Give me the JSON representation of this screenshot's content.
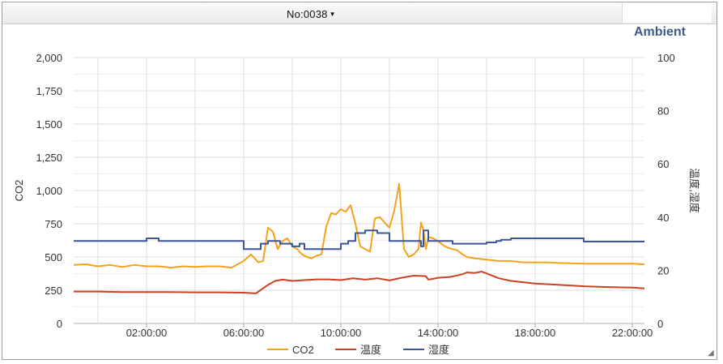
{
  "header": {
    "device_label": "No:0038",
    "chart_title": "Ambient"
  },
  "colors": {
    "co2": "#f5a11a",
    "temperature": "#cc4124",
    "humidity": "#3b5596",
    "title": "#3c5a8f"
  },
  "chart_data": {
    "type": "line",
    "title": "Ambient",
    "ylabel_left": "CO2",
    "ylabel_right": "温度,湿度",
    "ylim_left": [
      0,
      2000
    ],
    "ylim_right": [
      0,
      100
    ],
    "left_ticks": [
      "0",
      "250",
      "500",
      "750",
      "1,000",
      "1,250",
      "1,500",
      "1,750",
      "2,000"
    ],
    "right_ticks": [
      "0",
      "20",
      "40",
      "60",
      "80",
      "100"
    ],
    "x_tick_labels": [
      "02:00:00",
      "06:00:00",
      "10:00:00",
      "14:00:00",
      "18:00:00",
      "22:00:00"
    ],
    "grid": true,
    "legend_position": "bottom",
    "series": [
      {
        "name": "CO2",
        "axis": "left",
        "color": "#f5a11a",
        "x": [
          0,
          0.5,
          1,
          1.5,
          2,
          2.5,
          3,
          3.5,
          4,
          4.5,
          5,
          5.5,
          6,
          6.5,
          7,
          7.3,
          7.6,
          7.8,
          8,
          8.2,
          8.4,
          8.6,
          8.8,
          9,
          9.2,
          9.4,
          9.6,
          9.8,
          10,
          10.2,
          10.4,
          10.6,
          10.8,
          11,
          11.2,
          11.4,
          11.6,
          11.8,
          12,
          12.2,
          12.4,
          12.6,
          12.8,
          13,
          13.2,
          13.4,
          13.6,
          13.8,
          14,
          14.2,
          14.3,
          14.4,
          14.5,
          14.6,
          14.8,
          15,
          15.2,
          15.4,
          15.6,
          15.8,
          16,
          16.2,
          16.5,
          17,
          17.5,
          18,
          18.5,
          19,
          19.5,
          20,
          21,
          22,
          23,
          23.5
        ],
        "y": [
          440,
          445,
          430,
          440,
          425,
          440,
          430,
          430,
          420,
          430,
          425,
          430,
          430,
          420,
          470,
          520,
          460,
          470,
          720,
          690,
          560,
          620,
          640,
          580,
          560,
          520,
          500,
          490,
          510,
          520,
          730,
          830,
          820,
          860,
          840,
          890,
          750,
          580,
          560,
          540,
          790,
          800,
          760,
          720,
          850,
          1050,
          560,
          500,
          520,
          560,
          760,
          700,
          560,
          650,
          640,
          620,
          590,
          570,
          560,
          550,
          520,
          500,
          490,
          480,
          470,
          470,
          460,
          460,
          460,
          455,
          450,
          450,
          450,
          445
        ]
      },
      {
        "name": "温度",
        "axis": "right",
        "color": "#cc4124",
        "x": [
          0,
          1,
          2,
          3,
          4,
          5,
          6,
          7,
          7.5,
          8,
          8.3,
          8.6,
          9,
          9.5,
          10,
          10.5,
          11,
          11.5,
          12,
          12.5,
          13,
          13.5,
          14,
          14.5,
          14.6,
          14.8,
          15,
          15.5,
          16,
          16.2,
          16.5,
          16.8,
          17,
          17.5,
          18,
          19,
          20,
          21,
          22,
          23,
          23.5
        ],
        "y": [
          12,
          12,
          11.8,
          11.8,
          11.8,
          11.7,
          11.7,
          11.6,
          11.3,
          14.5,
          16,
          16.5,
          16,
          16.3,
          16.6,
          16.6,
          16.3,
          17,
          16.5,
          17,
          16.2,
          17.2,
          18,
          17.8,
          16.5,
          16.8,
          17.2,
          17.5,
          18.5,
          19.2,
          19,
          19.5,
          18.8,
          17,
          16,
          15,
          14.5,
          14,
          13.7,
          13.5,
          13.2
        ]
      },
      {
        "name": "湿度",
        "axis": "right",
        "color": "#3b5596",
        "x": [
          0,
          1,
          2,
          2.9,
          3,
          3.5,
          4,
          5,
          6,
          6.8,
          7,
          7.5,
          7.7,
          8,
          8.5,
          9,
          9.3,
          9.5,
          10,
          11,
          11.3,
          11.6,
          12,
          12.5,
          13,
          13.2,
          14,
          14.3,
          14.4,
          14.6,
          15,
          15.3,
          15.6,
          16,
          16.5,
          17,
          17.4,
          17.6,
          18,
          19,
          20,
          21,
          22,
          23,
          23.5
        ],
        "y": [
          31,
          31,
          31,
          31,
          32,
          31,
          31,
          31,
          31,
          31,
          28,
          28,
          30,
          31,
          30,
          29,
          30,
          28,
          28,
          30,
          31,
          34,
          35,
          34,
          31,
          31,
          31,
          29,
          35,
          31,
          31,
          31,
          30,
          30,
          30,
          30.5,
          31,
          31.5,
          32,
          32,
          32,
          30.8,
          30.8,
          30.8,
          30.8
        ]
      }
    ]
  }
}
